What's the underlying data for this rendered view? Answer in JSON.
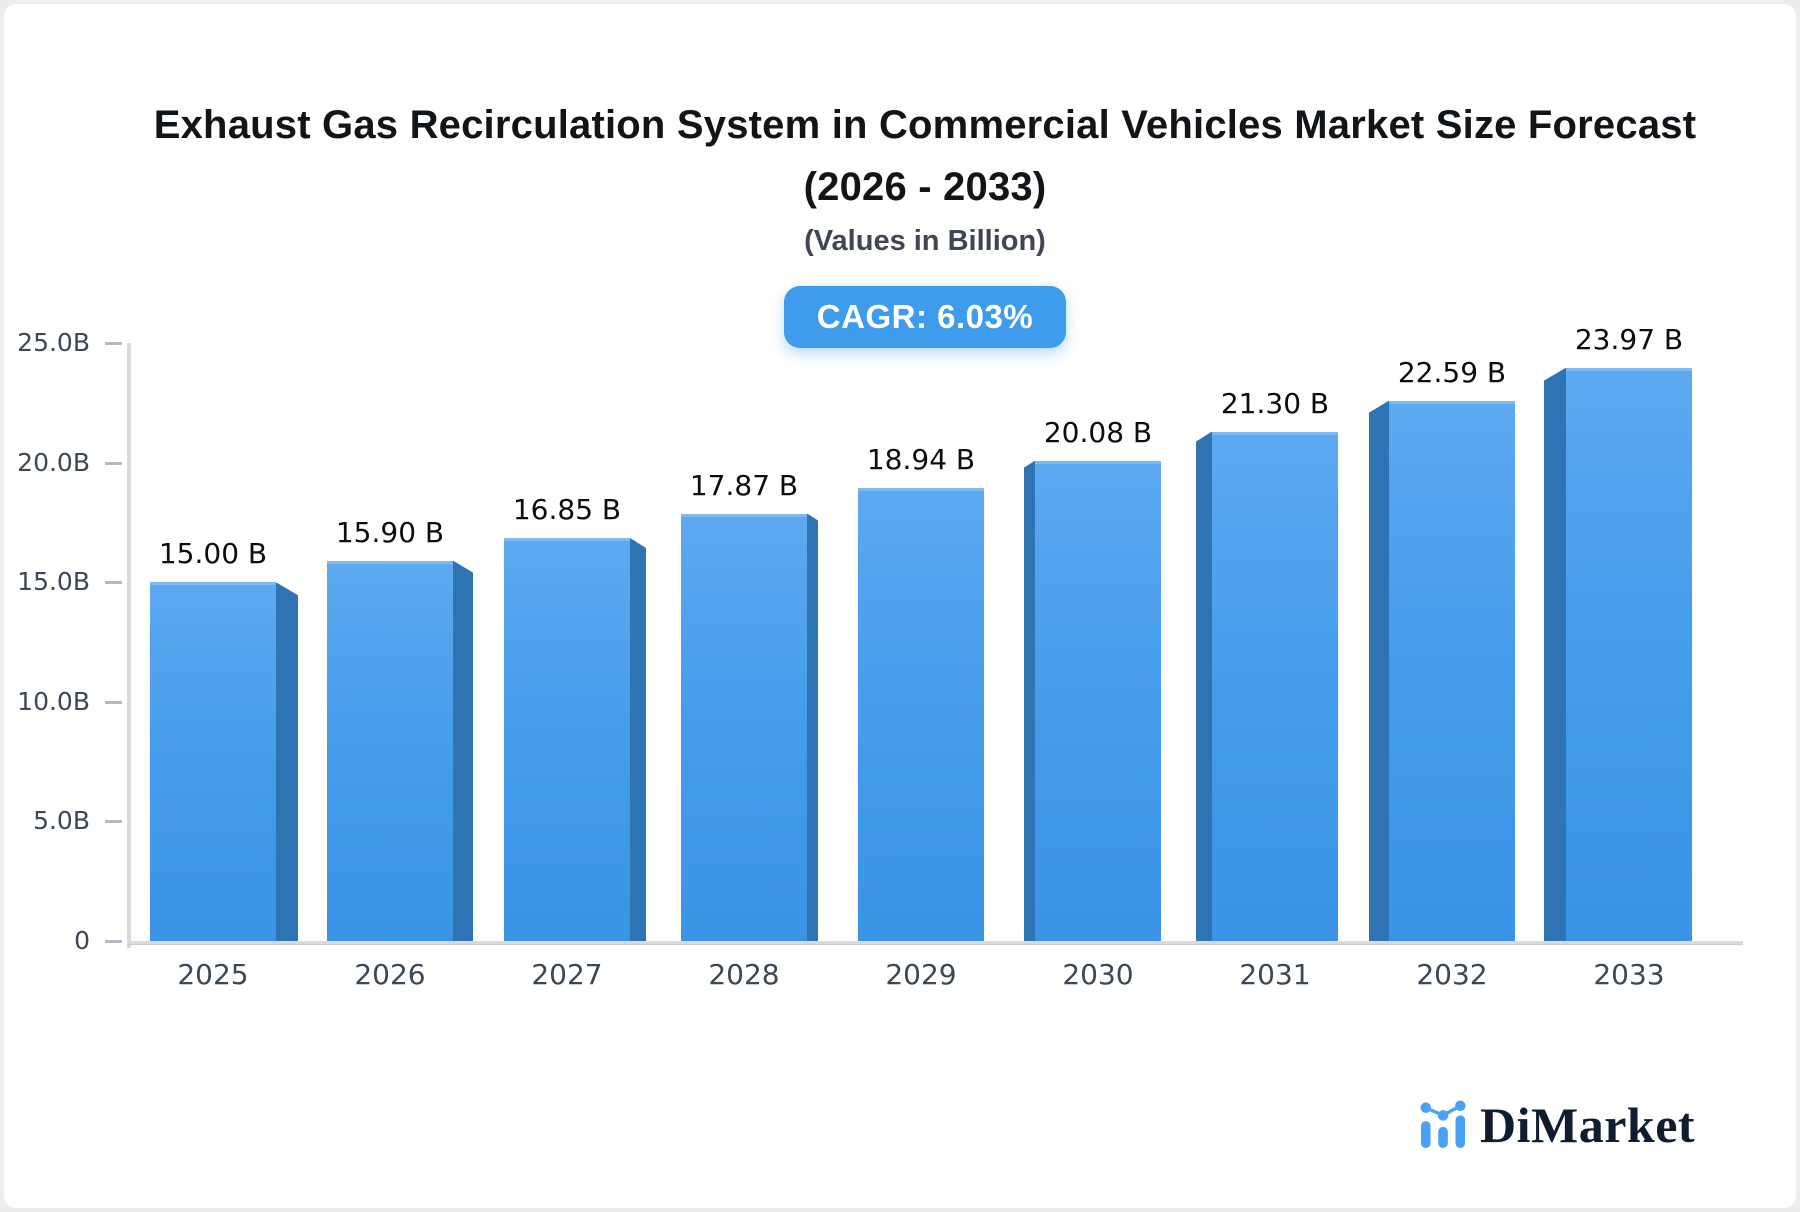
{
  "header": {
    "title": "Exhaust Gas Recirculation System in Commercial Vehicles Market Size Forecast",
    "title_range": "(2026 - 2033)",
    "subtitle": "(Values in Billion)",
    "cagr_label": "CAGR: 6.03%"
  },
  "chart_data": {
    "type": "bar",
    "title": "Exhaust Gas Recirculation System in Commercial Vehicles Market Size Forecast (2026 - 2033)",
    "subtitle": "(Values in Billion)",
    "cagr": "6.03%",
    "categories": [
      "2025",
      "2026",
      "2027",
      "2028",
      "2029",
      "2030",
      "2031",
      "2032",
      "2033"
    ],
    "values": [
      15.0,
      15.9,
      16.85,
      17.87,
      18.94,
      20.08,
      21.3,
      22.59,
      23.97
    ],
    "value_labels": [
      "15.00 B",
      "15.90 B",
      "16.85 B",
      "17.87 B",
      "18.94 B",
      "20.08 B",
      "21.30 B",
      "22.59 B",
      "23.97 B"
    ],
    "unit": "Billion",
    "xlabel": "",
    "ylabel": "",
    "ylim": [
      0,
      25
    ],
    "y_ticks": [
      {
        "label": "0",
        "value": 0
      },
      {
        "label": "5.0B",
        "value": 5
      },
      {
        "label": "10.0B",
        "value": 10
      },
      {
        "label": "15.0B",
        "value": 15
      },
      {
        "label": "20.0B",
        "value": 20
      },
      {
        "label": "25.0B",
        "value": 25
      }
    ],
    "grid": false,
    "legend": false,
    "style": "3d-bars"
  },
  "branding": {
    "name": "DiMarket"
  },
  "colors": {
    "bar_face": "#469DEB",
    "bar_side": "#2E74B2",
    "badge_bg": "#3F9CED",
    "axis_line": "#D9DADD",
    "axis_text": "#3C4757",
    "value_text": "#0B0D10",
    "title_text": "#111418",
    "brand_icon": "#4AA0F4",
    "brand_text": "#101C30",
    "card_bg": "#FFFFFF",
    "page_bg": "#EDEDEF"
  }
}
